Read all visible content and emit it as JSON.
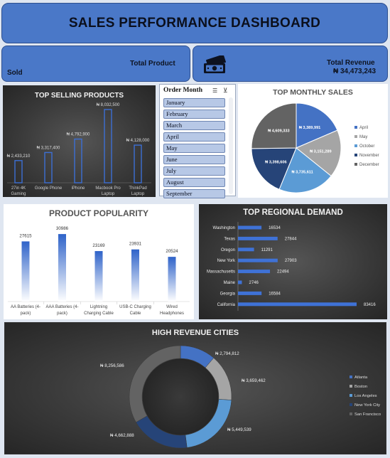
{
  "header": {
    "title": "SALES PERFORMANCE DASHBOARD"
  },
  "kpi_product": {
    "label": "Total Product",
    "sublabel": "Sold"
  },
  "kpi_revenue": {
    "label": "Total Revenue",
    "value": "₦ 34,473,243",
    "icon": "money-icon"
  },
  "top_selling": {
    "title": "TOP SELLING PRODUCTS",
    "chart_data": {
      "type": "bar",
      "categories": [
        "27in 4K Gaming Monitor",
        "Google Phone",
        "iPhone",
        "Macbook Pro Laptop",
        "ThinkPad Laptop"
      ],
      "category_lines": [
        [
          "27in 4K",
          "Gaming",
          "Monitor"
        ],
        [
          "Google Phone"
        ],
        [
          "iPhone"
        ],
        [
          "Macbook Pro",
          "Laptop"
        ],
        [
          "ThinkPad",
          "Laptop"
        ]
      ],
      "values": [
        2433210,
        3317400,
        4792900,
        8032500,
        4128000
      ],
      "labels": [
        "₦ 2,433,210",
        "₦ 3,317,400",
        "₦ 4,792,900",
        "₦ 8,032,500",
        "₦ 4,128,000"
      ],
      "ylim": [
        0,
        8500000
      ]
    }
  },
  "slicer": {
    "header": "Order Month",
    "items": [
      "January",
      "February",
      "March",
      "April",
      "May",
      "June",
      "July",
      "August",
      "September"
    ]
  },
  "top_monthly": {
    "title": "TOP MONTHLY SALES",
    "chart_data": {
      "type": "pie",
      "categories": [
        "April",
        "May",
        "October",
        "November",
        "December"
      ],
      "values": [
        3389991,
        3151289,
        3735611,
        3398606,
        4609333
      ],
      "labels": [
        "₦ 3,389,991",
        "₦ 3,151,289",
        "₦ 3,735,611",
        "₦ 3,398,606",
        "₦ 4,609,333"
      ],
      "colors": [
        "#4472c4",
        "#a5a5a5",
        "#5b9bd5",
        "#264478",
        "#636363"
      ],
      "legend": "right"
    }
  },
  "product_popularity": {
    "title": "PRODUCT POPULARITY",
    "chart_data": {
      "type": "bar",
      "categories": [
        "AA Batteries (4-pack)",
        "AAA Batteries (4-pack)",
        "Lightning Charging Cable",
        "USB-C Charging Cable",
        "Wired Headphones"
      ],
      "category_lines": [
        [
          "AA Batteries (4-",
          "pack)"
        ],
        [
          "AAA Batteries (4-",
          "pack)"
        ],
        [
          "Lightning",
          "Charging Cable"
        ],
        [
          "USB-C Charging",
          "Cable"
        ],
        [
          "Wired",
          "Headphones"
        ]
      ],
      "values": [
        27615,
        30986,
        23169,
        23931,
        20524
      ],
      "ylim": [
        0,
        32000
      ]
    }
  },
  "regional_demand": {
    "title": "TOP REGIONAL DEMAND",
    "chart_data": {
      "type": "bar",
      "orientation": "horizontal",
      "categories": [
        "Washington",
        "Texas",
        "Oregon",
        "New York",
        "Massachusetts",
        "Maine",
        "Georgia",
        "California"
      ],
      "values": [
        16534,
        27844,
        11291,
        27903,
        22494,
        2746,
        16584,
        83416
      ],
      "xlim": [
        0,
        83416
      ]
    }
  },
  "high_revenue_cities": {
    "title": "HIGH REVENUE CITIES",
    "chart_data": {
      "type": "pie",
      "variant": "donut",
      "categories": [
        "Atlanta",
        "Boston",
        "Los Angeles",
        "New York City",
        "San Francisco"
      ],
      "values": [
        2794812,
        3659462,
        5449539,
        4662888,
        8256586
      ],
      "labels": [
        "₦ 2,794,812",
        "₦ 3,659,462",
        "₦ 5,449,539",
        "₦ 4,662,888",
        "₦ 8,256,586"
      ],
      "colors": [
        "#4472c4",
        "#a5a5a5",
        "#5b9bd5",
        "#264478",
        "#636363"
      ],
      "legend": "right"
    }
  }
}
